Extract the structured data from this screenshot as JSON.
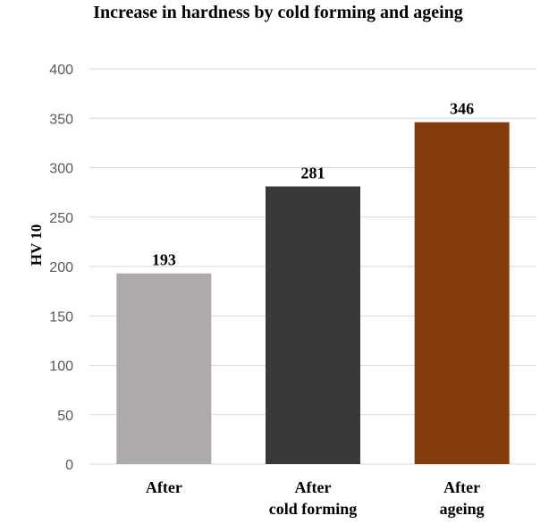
{
  "chart_data": {
    "type": "bar",
    "title": "Increase in hardness by cold forming and ageing",
    "ylabel": "HV 10",
    "xlabel": "",
    "ylim": [
      0,
      400
    ],
    "yticks": [
      0,
      50,
      100,
      150,
      200,
      250,
      300,
      350,
      400
    ],
    "grid": true,
    "categories": [
      [
        "After"
      ],
      [
        "After",
        "cold forming"
      ],
      [
        "After",
        "ageing"
      ]
    ],
    "values": [
      193,
      281,
      346
    ],
    "data_labels": [
      "193",
      "281",
      "346"
    ],
    "colors": [
      "#aeaaaa",
      "#3b3838",
      "#843c0c"
    ]
  }
}
